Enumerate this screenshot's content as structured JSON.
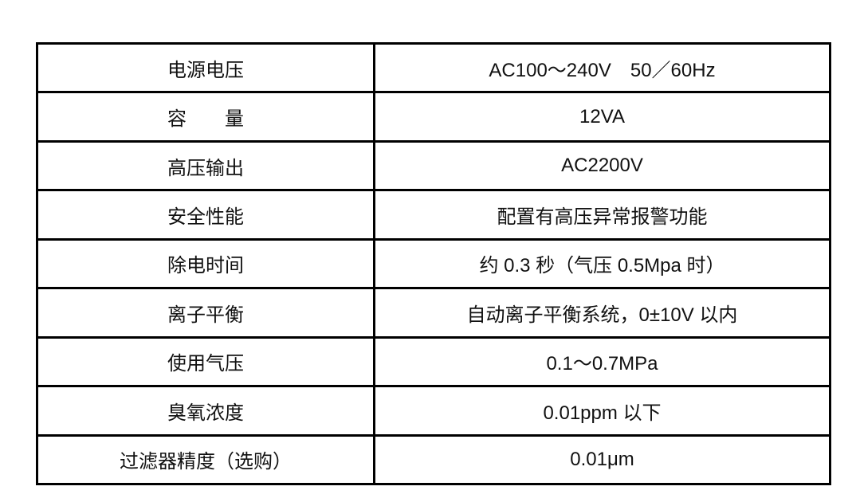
{
  "spec_table": {
    "rows": [
      {
        "label": "电源电压",
        "value": "AC100～240V　50／60Hz"
      },
      {
        "label": "容　　量",
        "value": "12VA"
      },
      {
        "label": "高压输出",
        "value": "AC2200V"
      },
      {
        "label": "安全性能",
        "value": "配置有高压异常报警功能"
      },
      {
        "label": "除电时间",
        "value": "约 0.3 秒（气压 0.5Mpa 时）"
      },
      {
        "label": "离子平衡",
        "value": "自动离子平衡系统，0±10V 以内"
      },
      {
        "label": "使用气压",
        "value": "0.1～0.7MPa"
      },
      {
        "label": "臭氧浓度",
        "value": "0.01ppm 以下"
      },
      {
        "label": "过滤器精度（选购）",
        "value": "0.01μm"
      }
    ]
  }
}
